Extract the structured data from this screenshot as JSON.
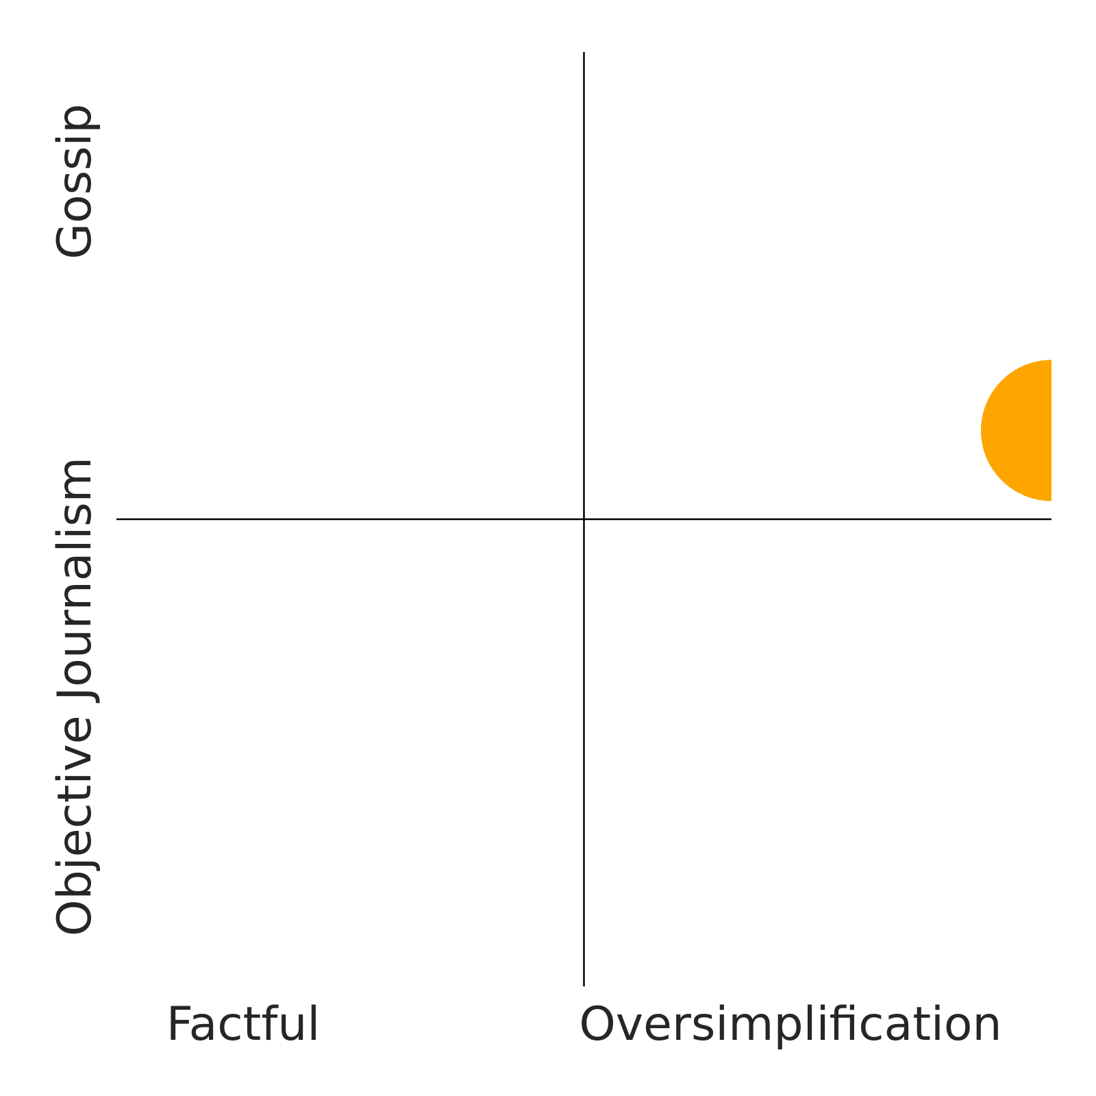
{
  "chart_data": {
    "type": "scatter",
    "title": "",
    "xlabel_left": "Factful",
    "xlabel_right": "Oversimplification",
    "ylabel_bottom": "Objective Journalism",
    "ylabel_top": "Gossip",
    "xlim": [
      -1,
      1
    ],
    "ylim": [
      -1,
      1
    ],
    "grid": false,
    "points": [
      {
        "x": 1.0,
        "y": 0.19,
        "color": "#FFA500"
      }
    ]
  }
}
